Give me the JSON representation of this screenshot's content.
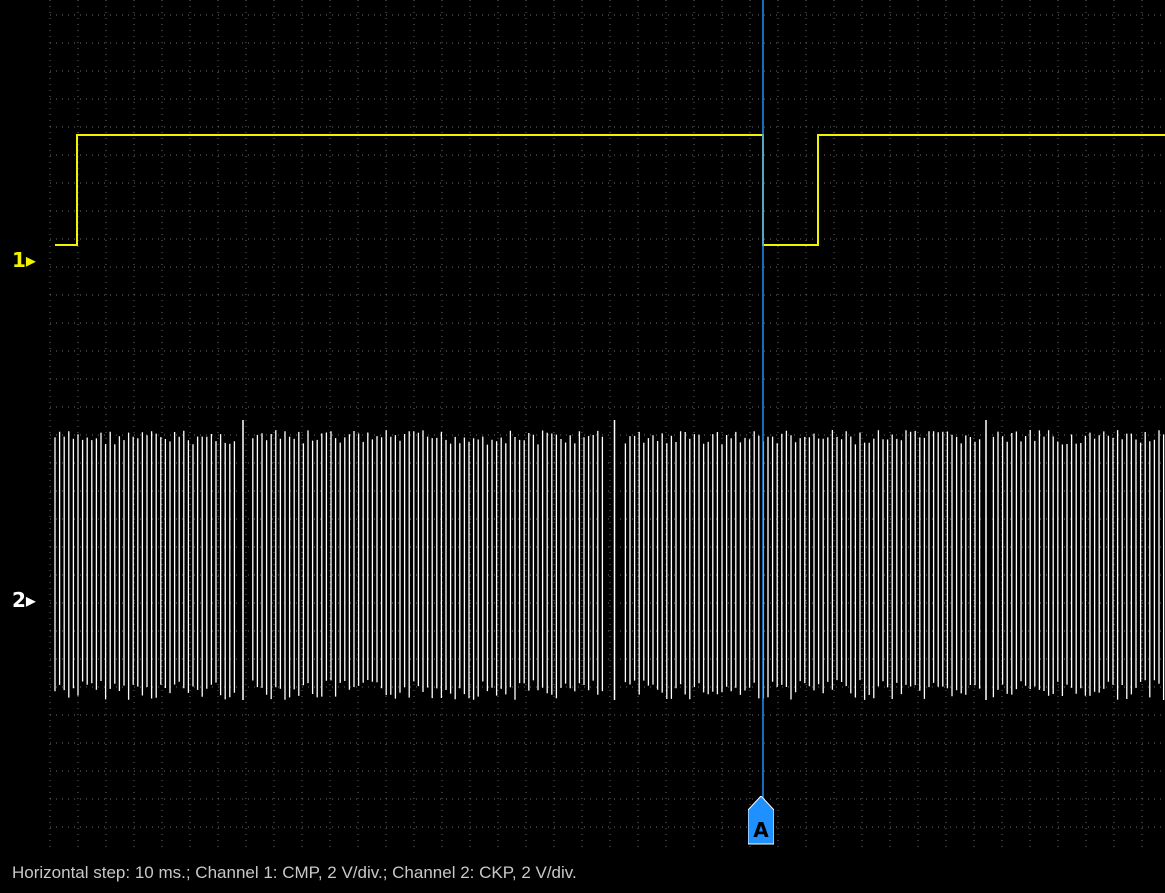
{
  "channels": [
    {
      "id": "1",
      "label": "1▸",
      "signal": "CMP",
      "color": "#f2f200"
    },
    {
      "id": "2",
      "label": "2▸",
      "signal": "CKP",
      "color": "#ffffff"
    }
  ],
  "cursor": {
    "label": "A",
    "color": "#1e90ff",
    "icon": "cursor-flag-icon"
  },
  "status_text": "Horizontal step: 10 ms.; Channel 1: CMP, 2 V/div.; Channel 2: CKP, 2 V/div.",
  "colors": {
    "background": "#000000",
    "grid": "#6a6a6a",
    "cursor": "#1e90ff"
  }
}
